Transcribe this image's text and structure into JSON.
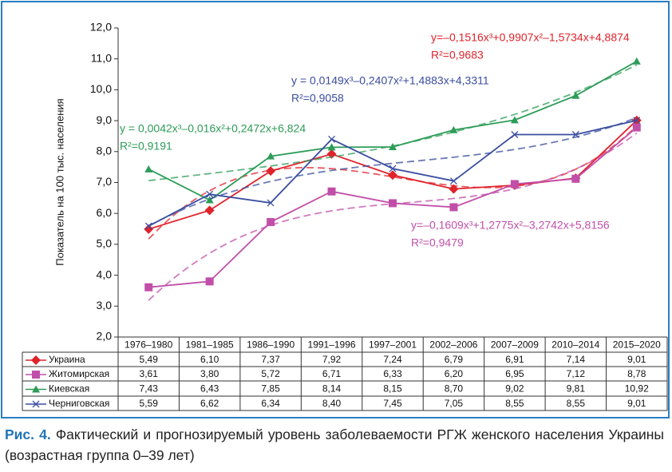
{
  "chart_data": {
    "type": "line",
    "y_label": "Показатель на 100 тыс. населения",
    "categories": [
      "1976–1980",
      "1981–1985",
      "1986–1990",
      "1991–1996",
      "1997–2001",
      "2002–2006",
      "2007–2009",
      "2010–2014",
      "2015–2020"
    ],
    "ylim": [
      2,
      12
    ],
    "yticks": [
      {
        "value": 2,
        "label": "2,0"
      },
      {
        "value": 3,
        "label": "3,0"
      },
      {
        "value": 4,
        "label": "4,0"
      },
      {
        "value": 5,
        "label": "5,0"
      },
      {
        "value": 6,
        "label": "6,0"
      },
      {
        "value": 7,
        "label": "7,0"
      },
      {
        "value": 8,
        "label": "8,0"
      },
      {
        "value": 9,
        "label": "9,0"
      },
      {
        "value": 10,
        "label": "10,0"
      },
      {
        "value": 11,
        "label": "11,0"
      },
      {
        "value": 12,
        "label": "12,0"
      }
    ],
    "grid": false,
    "series": [
      {
        "name": "Украина",
        "color": "#e0232b",
        "marker": "diamond",
        "values": [
          5.49,
          6.1,
          7.37,
          7.92,
          7.24,
          6.79,
          6.91,
          7.14,
          9.01
        ],
        "value_labels": [
          "5,49",
          "6,10",
          "7,37",
          "7,92",
          "7,24",
          "6,79",
          "6,91",
          "7,14",
          "9,01"
        ],
        "trend_equation": "y=–0,1516x³+0,9907x²–1,5734x+4,8874",
        "trend_r2": "R²=0,9683"
      },
      {
        "name": "Житомирская",
        "color": "#c14fa9",
        "marker": "square",
        "values": [
          3.61,
          3.8,
          5.72,
          6.71,
          6.33,
          6.2,
          6.95,
          7.12,
          8.78
        ],
        "value_labels": [
          "3,61",
          "3,80",
          "5,72",
          "6,71",
          "6,33",
          "6,20",
          "6,95",
          "7,12",
          "8,78"
        ],
        "trend_equation": "y=–0,1609x³+1,2775x²–3,2742x+5,8156",
        "trend_r2": "R²=0,9479"
      },
      {
        "name": "Киевская",
        "color": "#2d9c58",
        "marker": "triangle",
        "values": [
          7.43,
          6.43,
          7.85,
          8.14,
          8.15,
          8.7,
          9.02,
          9.81,
          10.92
        ],
        "value_labels": [
          "7,43",
          "6,43",
          "7,85",
          "8,14",
          "8,15",
          "8,70",
          "9,02",
          "9,81",
          "10,92"
        ],
        "trend_equation": "y = 0,0042x³–0,016x²+0,2472x+6,824",
        "trend_r2": "R²=0,9191"
      },
      {
        "name": "Черниговская",
        "color": "#3a4da0",
        "marker": "x",
        "values": [
          5.59,
          6.62,
          6.34,
          8.4,
          7.45,
          7.05,
          8.55,
          8.55,
          9.01
        ],
        "value_labels": [
          "5,59",
          "6,62",
          "6,34",
          "8,40",
          "7,45",
          "7,05",
          "8,55",
          "8,55",
          "9,01"
        ],
        "trend_equation": "y = 0,0149x³–0,2407x²+1,4883x+4,3311",
        "trend_r2": "R²=0,9058"
      }
    ]
  },
  "caption": {
    "label": "Рис. 4.",
    "text": "Фактический и прогнозируемый уровень заболеваемости РГЖ женского населения Украины (возрастная группа 0–39 лет)"
  }
}
